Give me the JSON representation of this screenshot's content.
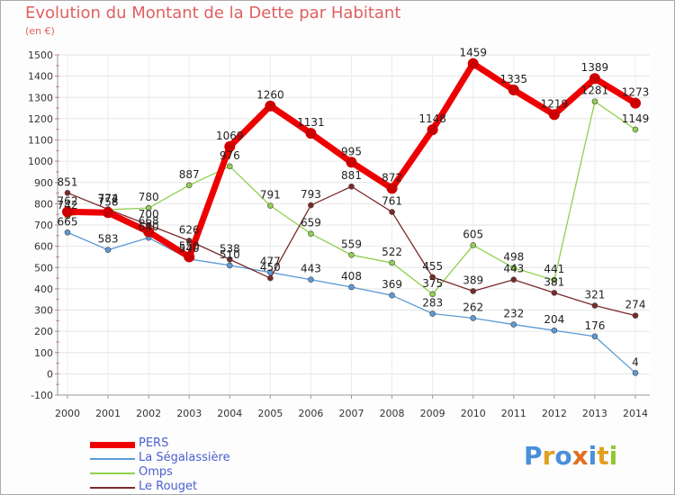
{
  "title": "Evolution du Montant de la Dette par Habitant",
  "unit_label": "(en €)",
  "logo": {
    "text": "Proxiti"
  },
  "chart_data": {
    "type": "line",
    "title": "Evolution du Montant de la Dette par Habitant",
    "ylabel": "(en €)",
    "xlabel": "",
    "x": [
      "2000",
      "2001",
      "2002",
      "2003",
      "2004",
      "2005",
      "2006",
      "2007",
      "2008",
      "2009",
      "2010",
      "2011",
      "2012",
      "2013",
      "2014"
    ],
    "ylim": [
      -100,
      1500
    ],
    "yticks": [
      -100,
      0,
      100,
      200,
      300,
      400,
      500,
      600,
      700,
      800,
      900,
      1000,
      1100,
      1200,
      1300,
      1400,
      1500
    ],
    "grid": true,
    "legend_position": "bottom-left",
    "series": [
      {
        "name": "PERS",
        "color": "#ee0000",
        "values": [
          762,
          758,
          668,
          550,
          1069,
          1260,
          1131,
          995,
          872,
          1148,
          1459,
          1335,
          1219,
          1389,
          1273
        ]
      },
      {
        "name": "La Ségalassière",
        "color": "#5b9bd5",
        "values": [
          665,
          583,
          640,
          540,
          510,
          477,
          443,
          408,
          369,
          283,
          262,
          232,
          204,
          176,
          4
        ]
      },
      {
        "name": "Omps",
        "color": "#8fd14f",
        "values": [
          742,
          772,
          780,
          887,
          976,
          791,
          659,
          559,
          522,
          375,
          605,
          498,
          441,
          1281,
          1149
        ]
      },
      {
        "name": "Le Rouget",
        "color": "#7a2a2a",
        "values": [
          851,
          774,
          700,
          626,
          538,
          450,
          793,
          881,
          761,
          455,
          389,
          443,
          381,
          321,
          274
        ]
      }
    ],
    "data_labels": [
      {
        "series": "PERS",
        "labels": [
          "762",
          "758",
          "668",
          "550",
          "1069",
          "1260",
          "1131",
          "995",
          "872",
          "1148",
          "1459",
          "1335",
          "1219",
          "1389",
          "1273"
        ]
      },
      {
        "series": "La Ségalassière",
        "labels": [
          "665",
          "583",
          "640",
          "540",
          "510",
          "477",
          "443",
          "408",
          "369",
          "283",
          "262",
          "232",
          "204",
          "176",
          "4"
        ]
      },
      {
        "series": "Omps",
        "labels": [
          "742",
          "772",
          "780",
          "887",
          "976",
          "791",
          "659",
          "559",
          "522",
          "375",
          "605",
          "498",
          "441",
          "1281",
          "1149"
        ]
      },
      {
        "series": "Le Rouget",
        "labels": [
          "851",
          "774",
          "700",
          "626",
          "538",
          "450",
          "793",
          "881",
          "761",
          "455",
          "389",
          "443",
          "381",
          "321",
          "274"
        ]
      }
    ]
  }
}
